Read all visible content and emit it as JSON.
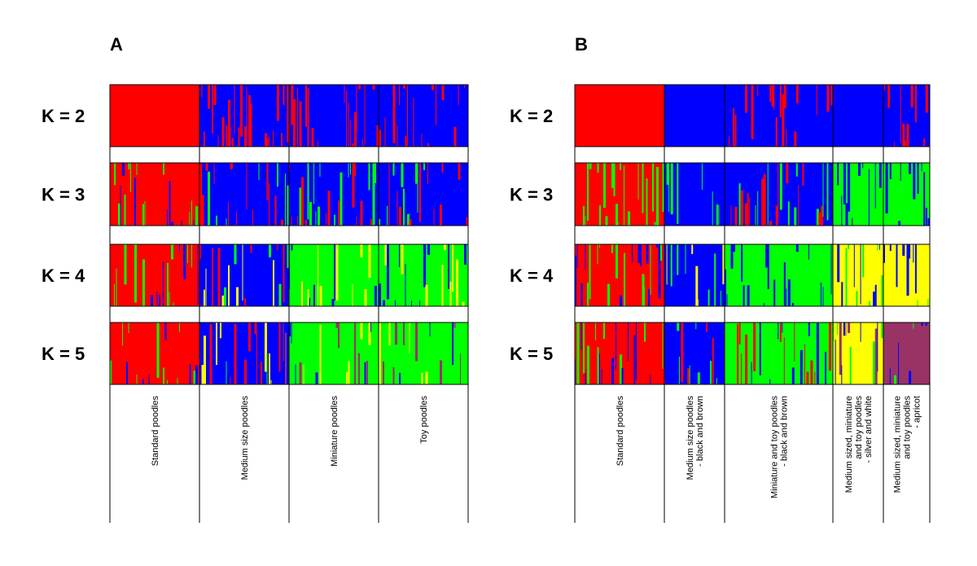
{
  "colors": {
    "c1": "#ff0000",
    "c2": "#0000ff",
    "c3": "#00ff00",
    "c4": "#ffff00",
    "c5": "#993366"
  },
  "panels": [
    {
      "letter": "A"
    },
    {
      "letter": "B"
    }
  ],
  "k_labels": [
    "K = 2",
    "K = 3",
    "K = 4",
    "K = 5"
  ],
  "chart_data": [
    {
      "type": "bar",
      "subtype": "stacked-structure-plot",
      "panel": "A",
      "rows": [
        "K = 2",
        "K = 3",
        "K = 4",
        "K = 5"
      ],
      "groups": [
        {
          "name": "Standard poodles",
          "lines": [
            "Standard poodles"
          ],
          "dominant": {
            "K = 2": "c1",
            "K = 3": "c1",
            "K = 4": "c1",
            "K = 5": "c1"
          },
          "minor": {
            "K = 2": [],
            "K = 3": [
              "c3",
              "c2"
            ],
            "K = 4": [
              "c3",
              "c2"
            ],
            "K = 5": [
              "c3",
              "c2"
            ]
          }
        },
        {
          "name": "Medium size poodles",
          "lines": [
            "Medium size poodles"
          ],
          "dominant": {
            "K = 2": "c2",
            "K = 3": "c2",
            "K = 4": "c2",
            "K = 5": "c2"
          },
          "minor": {
            "K = 2": [
              "c1"
            ],
            "K = 3": [
              "c3",
              "c1"
            ],
            "K = 4": [
              "c4",
              "c3",
              "c1"
            ],
            "K = 5": [
              "c4",
              "c3",
              "c5",
              "c1"
            ]
          }
        },
        {
          "name": "Miniature poodles",
          "lines": [
            "Miniature poodles"
          ],
          "dominant": {
            "K = 2": "c2",
            "K = 3": "c2",
            "K = 4": "c3",
            "K = 5": "c3"
          },
          "minor": {
            "K = 2": [
              "c1"
            ],
            "K = 3": [
              "c3",
              "c1"
            ],
            "K = 4": [
              "c4",
              "c2"
            ],
            "K = 5": [
              "c4",
              "c2",
              "c5"
            ]
          }
        },
        {
          "name": "Toy poodles",
          "lines": [
            "Toy poodles"
          ],
          "dominant": {
            "K = 2": "c2",
            "K = 3": "c2",
            "K = 4": "c3",
            "K = 5": "c3"
          },
          "minor": {
            "K = 2": [
              "c1"
            ],
            "K = 3": [
              "c3",
              "c1"
            ],
            "K = 4": [
              "c4",
              "c2"
            ],
            "K = 5": [
              "c4",
              "c5",
              "c2"
            ]
          }
        }
      ]
    },
    {
      "type": "bar",
      "subtype": "stacked-structure-plot",
      "panel": "B",
      "rows": [
        "K = 2",
        "K = 3",
        "K = 4",
        "K = 5"
      ],
      "groups": [
        {
          "name": "Standard poodles",
          "lines": [
            "Standard poodles"
          ],
          "dominant": {
            "K = 2": "c1",
            "K = 3": "c1",
            "K = 4": "c1",
            "K = 5": "c1"
          },
          "minor": {
            "K = 2": [],
            "K = 3": [
              "c3"
            ],
            "K = 4": [
              "c3",
              "c2"
            ],
            "K = 5": [
              "c3",
              "c2"
            ]
          }
        },
        {
          "name": "Medium size poodles - black and brown",
          "lines": [
            "Medium size poodles",
            "- black and brown"
          ],
          "dominant": {
            "K = 2": "c2",
            "K = 3": "c2",
            "K = 4": "c2",
            "K = 5": "c2"
          },
          "minor": {
            "K = 2": [],
            "K = 3": [
              "c3"
            ],
            "K = 4": [
              "c3",
              "c4"
            ],
            "K = 5": [
              "c3",
              "c1"
            ]
          }
        },
        {
          "name": "Miniature and toy poodles - black and brown",
          "lines": [
            "Miniature and toy poodles",
            "- black and brown"
          ],
          "dominant": {
            "K = 2": "c2",
            "K = 3": "c2",
            "K = 4": "c3",
            "K = 5": "c3"
          },
          "minor": {
            "K = 2": [
              "c1"
            ],
            "K = 3": [
              "c1",
              "c3"
            ],
            "K = 4": [
              "c2"
            ],
            "K = 5": [
              "c2",
              "c1"
            ]
          }
        },
        {
          "name": "Medium sized, miniature and toy poodles - silver and white",
          "lines": [
            "Medium sized, miniature",
            "and toy poodles",
            "- silver and white"
          ],
          "dominant": {
            "K = 2": "c2",
            "K = 3": "c3",
            "K = 4": "c4",
            "K = 5": "c4"
          },
          "minor": {
            "K = 2": [],
            "K = 3": [
              "c2"
            ],
            "K = 4": [
              "c2",
              "c3"
            ],
            "K = 5": [
              "c3",
              "c5",
              "c2"
            ]
          }
        },
        {
          "name": "Medium sized, miniature and toy poodles - apricot",
          "lines": [
            "Medium sized, miniature",
            "and toy poodles",
            "- apricot"
          ],
          "dominant": {
            "K = 2": "c2",
            "K = 3": "c3",
            "K = 4": "c4",
            "K = 5": "c5"
          },
          "minor": {
            "K = 2": [
              "c1"
            ],
            "K = 3": [
              "c2"
            ],
            "K = 4": [
              "c2",
              "c3"
            ],
            "K = 5": [
              "c3",
              "c2"
            ]
          }
        }
      ]
    }
  ]
}
